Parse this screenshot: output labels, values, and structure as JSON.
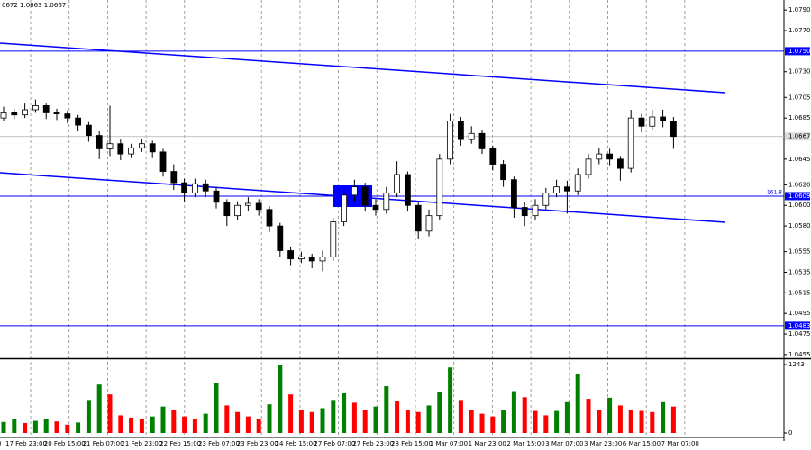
{
  "chart_data": {
    "type": "candlestick",
    "header": "0672 1.0663 1.0667",
    "open": [
      1.0685,
      1.069,
      1.0688,
      1.0693,
      1.0697,
      1.069,
      1.0689,
      1.0685,
      1.0678,
      1.0668,
      1.0655,
      1.066,
      1.065,
      1.0656,
      1.066,
      1.0652,
      1.0633,
      1.0622,
      1.0612,
      1.0621,
      1.0614,
      1.0603,
      1.059,
      1.06,
      1.0602,
      1.0596,
      1.058,
      1.0556,
      1.0548,
      1.055,
      1.0546,
      1.055,
      1.0584,
      1.061,
      1.0618,
      1.06,
      1.0596,
      1.0612,
      1.063,
      1.06,
      1.0575,
      1.059,
      1.0645,
      1.0682,
      1.0664,
      1.067,
      1.0655,
      1.064,
      1.0625,
      1.0598,
      1.059,
      1.06,
      1.0612,
      1.0618,
      1.0614,
      1.063,
      1.0645,
      1.065,
      1.0645,
      1.0636,
      1.0685,
      1.0677,
      1.0686,
      1.0682
    ],
    "high": [
      1.0696,
      1.0694,
      1.0699,
      1.0703,
      1.0699,
      1.0694,
      1.0692,
      1.0688,
      1.0681,
      1.0672,
      1.0697,
      1.0664,
      1.066,
      1.0665,
      1.0663,
      1.0655,
      1.064,
      1.0626,
      1.0626,
      1.0625,
      1.0618,
      1.0606,
      1.0604,
      1.0608,
      1.0606,
      1.0599,
      1.0583,
      1.056,
      1.0555,
      1.0553,
      1.0556,
      1.0588,
      1.0615,
      1.0625,
      1.0622,
      1.0606,
      1.0618,
      1.0643,
      1.0633,
      1.0603,
      1.0596,
      1.065,
      1.0689,
      1.0686,
      1.0677,
      1.0673,
      1.0658,
      1.0644,
      1.0628,
      1.0603,
      1.0606,
      1.0617,
      1.0625,
      1.0624,
      1.0636,
      1.065,
      1.0656,
      1.0655,
      1.0648,
      1.0693,
      1.0689,
      1.0693,
      1.0693,
      1.0686
    ],
    "low": [
      1.0682,
      1.0684,
      1.0685,
      1.069,
      1.0684,
      1.0683,
      1.068,
      1.0672,
      1.0662,
      1.0645,
      1.0648,
      1.0644,
      1.0646,
      1.0652,
      1.0646,
      1.0628,
      1.0615,
      1.0603,
      1.0608,
      1.0608,
      1.0597,
      1.058,
      1.0586,
      1.0595,
      1.059,
      1.0574,
      1.055,
      1.0542,
      1.0544,
      1.0539,
      1.0536,
      1.0546,
      1.058,
      1.0604,
      1.0594,
      1.059,
      1.0592,
      1.0608,
      1.0594,
      1.0567,
      1.057,
      1.0586,
      1.064,
      1.0658,
      1.066,
      1.065,
      1.0634,
      1.0618,
      1.0588,
      1.058,
      1.0586,
      1.0596,
      1.0608,
      1.0592,
      1.061,
      1.0626,
      1.064,
      1.0639,
      1.0624,
      1.0632,
      1.0671,
      1.0673,
      1.0676,
      1.0655
    ],
    "close": [
      1.069,
      1.0688,
      1.0693,
      1.0697,
      1.069,
      1.0689,
      1.0685,
      1.0678,
      1.0668,
      1.0655,
      1.066,
      1.065,
      1.0656,
      1.066,
      1.0652,
      1.0633,
      1.0622,
      1.0612,
      1.0621,
      1.0614,
      1.0603,
      1.059,
      1.06,
      1.0602,
      1.0596,
      1.058,
      1.0556,
      1.0548,
      1.055,
      1.0546,
      1.055,
      1.0584,
      1.061,
      1.0618,
      1.06,
      1.0596,
      1.0612,
      1.063,
      1.06,
      1.0575,
      1.059,
      1.0645,
      1.0682,
      1.0664,
      1.067,
      1.0655,
      1.064,
      1.0625,
      1.0598,
      1.059,
      1.06,
      1.0612,
      1.0618,
      1.0614,
      1.063,
      1.0645,
      1.065,
      1.0645,
      1.0636,
      1.0685,
      1.0677,
      1.0686,
      1.0682,
      1.0667
    ],
    "volumes": [
      200,
      250,
      180,
      220,
      260,
      210,
      150,
      190,
      600,
      880,
      700,
      320,
      280,
      260,
      300,
      480,
      420,
      300,
      260,
      350,
      900,
      500,
      380,
      300,
      260,
      520,
      1243,
      700,
      420,
      380,
      450,
      600,
      720,
      550,
      420,
      480,
      850,
      580,
      420,
      380,
      500,
      750,
      1190,
      600,
      420,
      350,
      300,
      420,
      760,
      650,
      400,
      320,
      400,
      560,
      1080,
      620,
      420,
      640,
      500,
      420,
      400,
      380,
      560,
      480
    ],
    "ylim": [
      1.04514,
      1.07998
    ],
    "yticks": [
      {
        "value": 1.079,
        "label": "1.0790"
      },
      {
        "value": 1.077,
        "label": "1.0770"
      },
      {
        "value": 1.073,
        "label": "1.0730"
      },
      {
        "value": 1.0705,
        "label": "1.0705"
      },
      {
        "value": 1.0685,
        "label": "1.0685"
      },
      {
        "value": 1.0645,
        "label": "1.0645"
      },
      {
        "value": 1.062,
        "label": "1.0620"
      },
      {
        "value": 1.06,
        "label": "1.0600"
      },
      {
        "value": 1.058,
        "label": "1.0580"
      },
      {
        "value": 1.0555,
        "label": "1.0555"
      },
      {
        "value": 1.0535,
        "label": "1.0535"
      },
      {
        "value": 1.0515,
        "label": "1.0515"
      },
      {
        "value": 1.0495,
        "label": "1.0495"
      },
      {
        "value": 1.0475,
        "label": "1.0475"
      },
      {
        "value": 1.0455,
        "label": "1.0455"
      }
    ],
    "levels": [
      {
        "value": 1.075,
        "label": "1.0750"
      },
      {
        "value": 1.0609,
        "label": "1.0609"
      },
      {
        "value": 1.0483,
        "label": "1.0483"
      }
    ],
    "current_price": {
      "value": 1.0667,
      "label": "1.0667"
    },
    "fib_label": "161.8",
    "volume_ylim": [
      0,
      1243
    ],
    "volume_yticks": [
      1243,
      0
    ],
    "xticks": [
      "0",
      "17 Feb 23:00",
      "20 Feb 15:00",
      "21 Feb 07:00",
      "21 Feb 23:00",
      "22 Feb 15:00",
      "23 Feb 07:00",
      "23 Feb 23:00",
      "24 Feb 15:00",
      "27 Feb 07:00",
      "27 Feb 23:00",
      "28 Feb 15:00",
      "1 Mar 07:00",
      "1 Mar 23:00",
      "2 Mar 15:00",
      "3 Mar 07:00",
      "3 Mar 23:00",
      "6 Mar 15:00",
      "7 Mar 07:00"
    ]
  }
}
